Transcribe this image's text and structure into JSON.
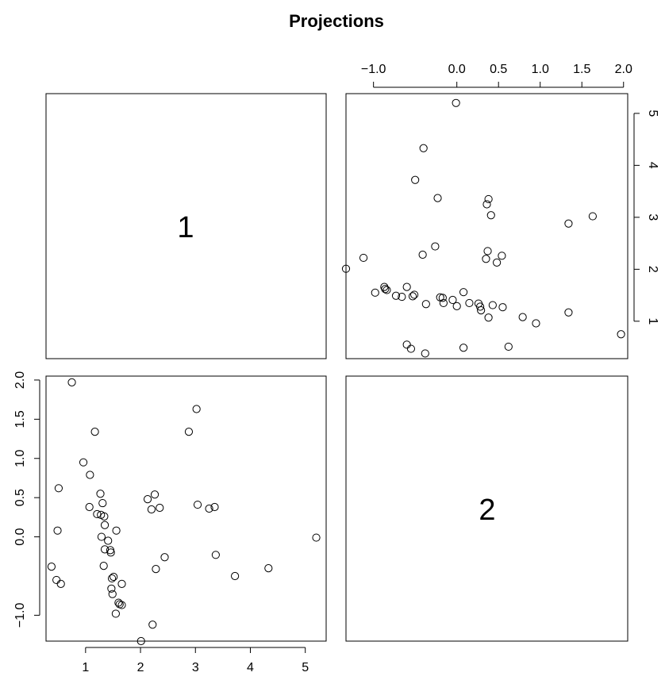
{
  "chart_data": {
    "type": "scatter",
    "title": "Projections",
    "variables": [
      "1",
      "2"
    ],
    "panel_12": {
      "x_var": "2",
      "y_var": "1",
      "xlim": [
        -1.33,
        2.05
      ],
      "ylim": [
        0.28,
        5.38
      ],
      "top_ticks": [
        "−1.0",
        "0.0",
        "0.5",
        "1.0",
        "1.5",
        "2.0"
      ],
      "right_ticks": [
        "1",
        "2",
        "3",
        "4",
        "5"
      ]
    },
    "panel_21": {
      "x_var": "1",
      "y_var": "2",
      "xlim": [
        0.28,
        5.38
      ],
      "ylim": [
        -1.33,
        2.05
      ],
      "bottom_ticks": [
        "1",
        "2",
        "3",
        "4",
        "5"
      ],
      "left_ticks": [
        "−1.0",
        "0.0",
        "0.5",
        "1.0",
        "1.5",
        "2.0"
      ]
    },
    "points": [
      {
        "v1": 5.2,
        "v2": -0.01
      },
      {
        "v1": 4.33,
        "v2": -0.4
      },
      {
        "v1": 3.72,
        "v2": -0.5
      },
      {
        "v1": 3.37,
        "v2": -0.23
      },
      {
        "v1": 3.35,
        "v2": 0.38
      },
      {
        "v1": 3.25,
        "v2": 0.36
      },
      {
        "v1": 3.04,
        "v2": 0.41
      },
      {
        "v1": 3.02,
        "v2": 1.63
      },
      {
        "v1": 2.88,
        "v2": 1.34
      },
      {
        "v1": 2.44,
        "v2": -0.26
      },
      {
        "v1": 2.35,
        "v2": 0.37
      },
      {
        "v1": 2.28,
        "v2": -0.41
      },
      {
        "v1": 2.26,
        "v2": 0.54
      },
      {
        "v1": 2.2,
        "v2": 0.35
      },
      {
        "v1": 2.13,
        "v2": 0.48
      },
      {
        "v1": 2.22,
        "v2": -1.12
      },
      {
        "v1": 2.01,
        "v2": -1.33
      },
      {
        "v1": 1.66,
        "v2": -0.6
      },
      {
        "v1": 1.66,
        "v2": -0.87
      },
      {
        "v1": 1.62,
        "v2": -0.86
      },
      {
        "v1": 1.6,
        "v2": -0.84
      },
      {
        "v1": 1.56,
        "v2": 0.08
      },
      {
        "v1": 1.55,
        "v2": -0.98
      },
      {
        "v1": 1.51,
        "v2": -0.51
      },
      {
        "v1": 1.49,
        "v2": -0.73
      },
      {
        "v1": 1.48,
        "v2": -0.53
      },
      {
        "v1": 1.47,
        "v2": -0.66
      },
      {
        "v1": 1.46,
        "v2": -0.2
      },
      {
        "v1": 1.45,
        "v2": -0.17
      },
      {
        "v1": 1.41,
        "v2": -0.05
      },
      {
        "v1": 1.35,
        "v2": -0.16
      },
      {
        "v1": 1.35,
        "v2": 0.15
      },
      {
        "v1": 1.34,
        "v2": 0.26
      },
      {
        "v1": 1.33,
        "v2": -0.37
      },
      {
        "v1": 1.31,
        "v2": 0.43
      },
      {
        "v1": 1.29,
        "v2": 0.0
      },
      {
        "v1": 1.28,
        "v2": 0.28
      },
      {
        "v1": 1.27,
        "v2": 0.55
      },
      {
        "v1": 1.21,
        "v2": 0.29
      },
      {
        "v1": 1.17,
        "v2": 1.34
      },
      {
        "v1": 1.07,
        "v2": 0.38
      },
      {
        "v1": 1.08,
        "v2": 0.79
      },
      {
        "v1": 0.96,
        "v2": 0.95
      },
      {
        "v1": 0.75,
        "v2": 1.97
      },
      {
        "v1": 0.55,
        "v2": -0.6
      },
      {
        "v1": 0.51,
        "v2": 0.62
      },
      {
        "v1": 0.49,
        "v2": 0.08
      },
      {
        "v1": 0.47,
        "v2": -0.55
      },
      {
        "v1": 0.38,
        "v2": -0.38
      }
    ]
  }
}
